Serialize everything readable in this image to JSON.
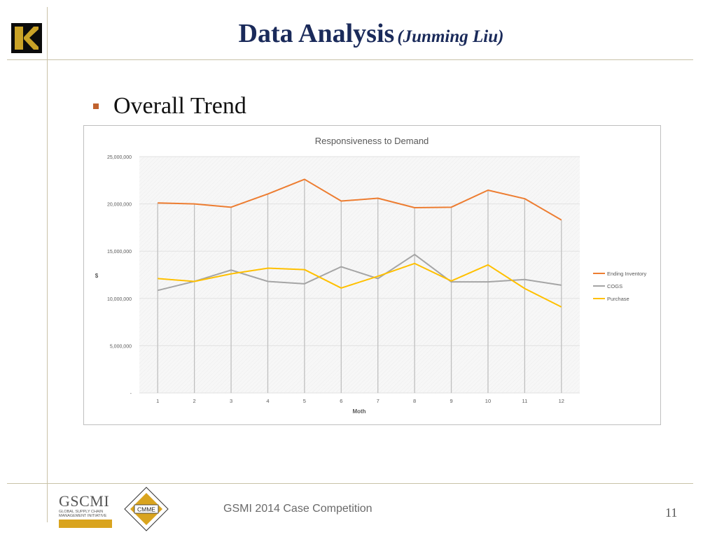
{
  "slide": {
    "title": "Data Analysis",
    "subtitle": "(Junming Liu)",
    "bullet": "Overall Trend",
    "footer_text": "GSMI 2014 Case Competition",
    "page_number": "11",
    "logo_letter": "K"
  },
  "logos": {
    "gscmi_name": "GSCMI",
    "gscmi_line1": "GLOBAL SUPPLY CHAIN",
    "gscmi_line2": "MANAGEMENT INITIATIVE",
    "cmme_label": "CMME"
  },
  "chart_data": {
    "type": "line",
    "title": "Responsiveness  to Demand",
    "xlabel": "Moth",
    "ylabel": "$",
    "categories": [
      "1",
      "2",
      "3",
      "4",
      "5",
      "6",
      "7",
      "8",
      "9",
      "10",
      "11",
      "12"
    ],
    "ylim": [
      0,
      25000000
    ],
    "yticks": [
      0,
      5000000,
      10000000,
      15000000,
      20000000,
      25000000
    ],
    "ytick_labels": [
      "-",
      "5,000,000",
      "10,000,000",
      "15,000,000",
      "20,000,000",
      "25,000,000"
    ],
    "grid": true,
    "legend_position": "right",
    "series": [
      {
        "name": "Ending Inventory",
        "color": "#ed7d31",
        "values": [
          20100000,
          20000000,
          19650000,
          21050000,
          22600000,
          20300000,
          20600000,
          19600000,
          19650000,
          21450000,
          20550000,
          18300000
        ]
      },
      {
        "name": "COGS",
        "color": "#a5a5a5",
        "values": [
          10850000,
          11800000,
          13000000,
          11800000,
          11550000,
          13350000,
          12100000,
          14650000,
          11750000,
          11750000,
          12000000,
          11400000
        ]
      },
      {
        "name": "Purchase",
        "color": "#ffc000",
        "values": [
          12100000,
          11800000,
          12600000,
          13200000,
          13050000,
          11100000,
          12350000,
          13700000,
          11850000,
          13550000,
          11050000,
          9100000
        ]
      }
    ]
  }
}
